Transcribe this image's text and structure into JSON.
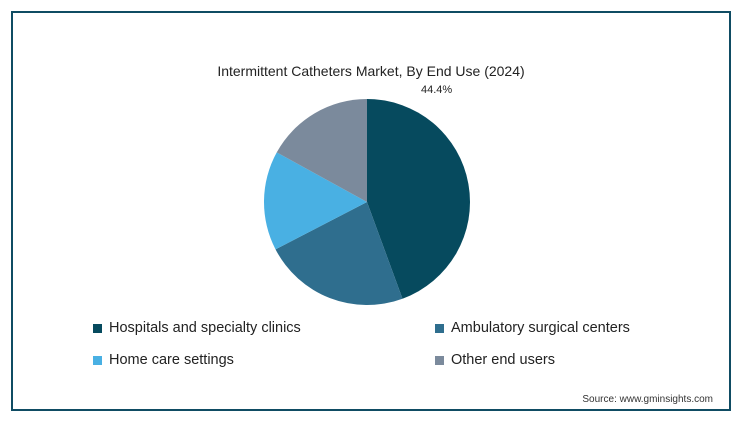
{
  "chart_data": {
    "type": "pie",
    "title": "Intermittent Catheters Market, By End Use (2024)",
    "categories": [
      "Hospitals and specialty clinics",
      "Ambulatory surgical centers",
      "Home care settings",
      "Other end users"
    ],
    "values": [
      44.4,
      23.0,
      15.6,
      17.0
    ],
    "data_labels": [
      "44.4%",
      null,
      null,
      null
    ],
    "colors": [
      "#064a5e",
      "#2f6e8e",
      "#49b0e3",
      "#7b8a9c"
    ],
    "legend_placement": "bottom",
    "start_angle_deg": 0,
    "direction": "clockwise"
  },
  "source": "Source: www.gminsights.com"
}
